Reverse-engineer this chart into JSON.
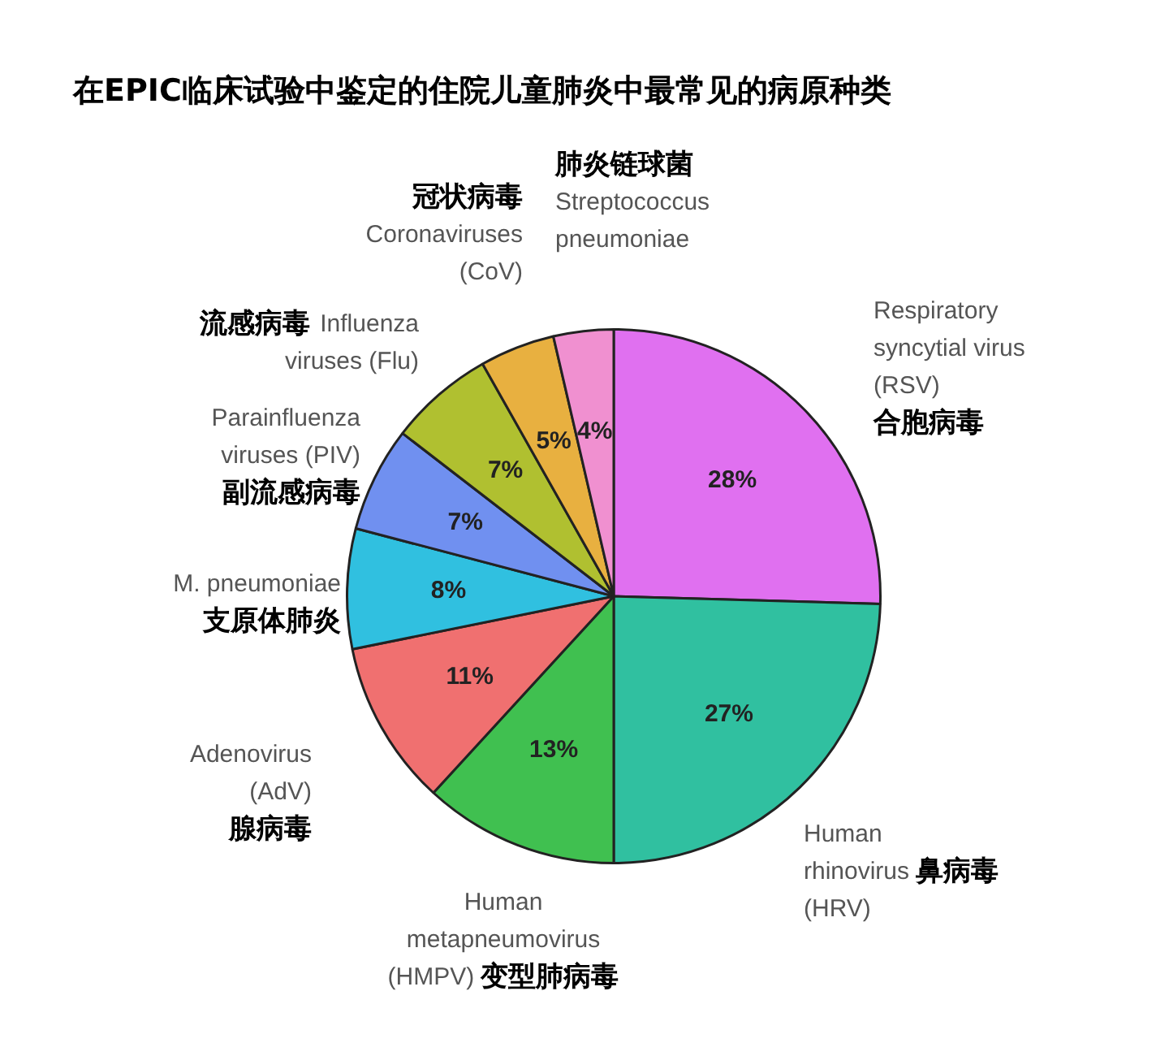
{
  "chart_data": {
    "type": "pie",
    "title": "在EPIC临床试验中鉴定的住院儿童肺炎中最常见的病原种类",
    "categories": [
      "Respiratory\nsyncytial virus\n(RSV)\n合胞病毒",
      "Human\nrhinovirus 鼻病毒\n(HRV)",
      "Human\nmetapneumovirus\n(HMPV) 变型肺病毒",
      "Adenovirus\n(AdV)\n腺病毒",
      "M. pneumoniae\n支原体肺炎",
      "Parainfluenza\nviruses (PIV)\n副流感病毒",
      "流感病毒 Influenza\nviruses (Flu)",
      "冠状病毒\nCoronaviruses\n(CoV)",
      "肺炎链球菌\nStreptococcus\npneumoniae"
    ],
    "values": [
      28,
      27,
      13,
      11,
      8,
      7,
      7,
      5,
      4
    ],
    "value_labels": [
      "28%",
      "27%",
      "13%",
      "11%",
      "8%",
      "7%",
      "7%",
      "5%",
      "4%"
    ],
    "colors": [
      "#e070f0",
      "#30c0a0",
      "#40c050",
      "#f07070",
      "#30c0e0",
      "#7090f0",
      "#b0c030",
      "#e8b040",
      "#f090d0"
    ],
    "legend": false
  }
}
